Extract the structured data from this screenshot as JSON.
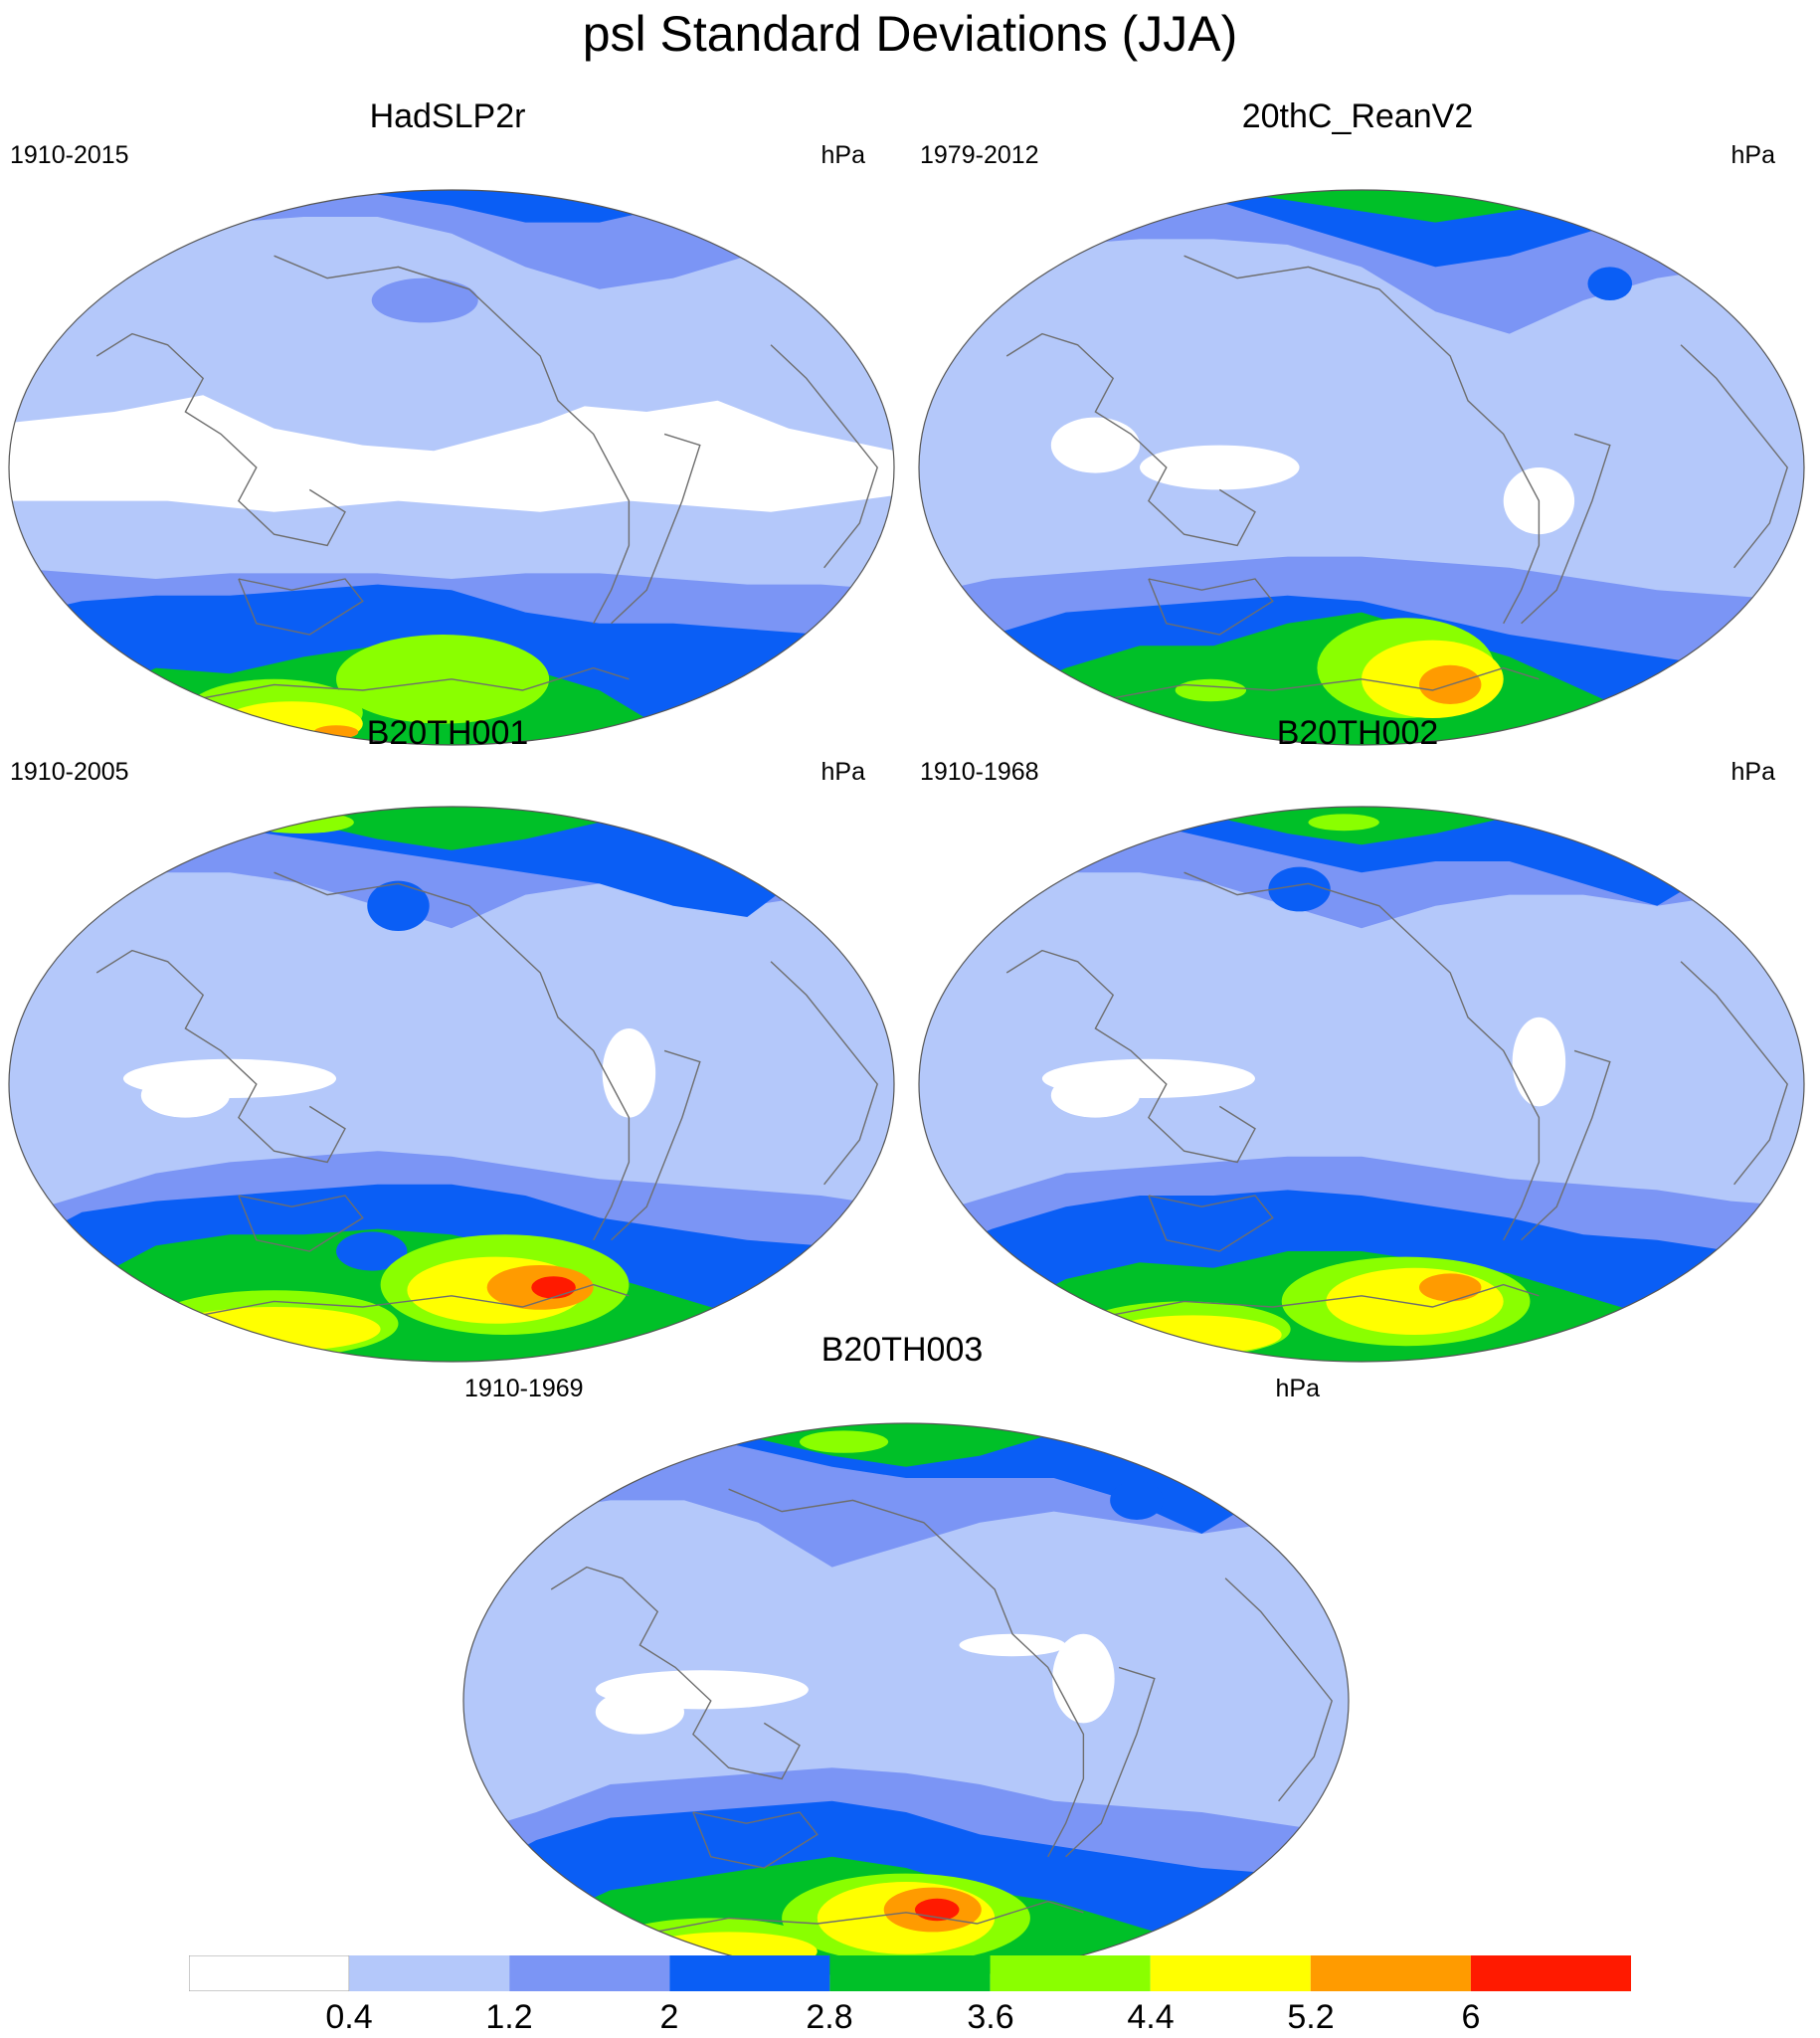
{
  "title": "psl Standard Deviations (JJA)",
  "colors": {
    "levels": [
      "#ffffff",
      "#b4c8fa",
      "#7b95f5",
      "#0a5ef5",
      "#00c028",
      "#8aff00",
      "#ffff00",
      "#ff9b00",
      "#ff1a00"
    ],
    "coast": "#6e6e6e",
    "frame": "#555555"
  },
  "panels": [
    {
      "title": "HadSLP2r",
      "years": "1910-2015",
      "units": "hPa"
    },
    {
      "title": "20thC_ReanV2",
      "years": "1979-2012",
      "units": "hPa"
    },
    {
      "title": "B20TH001",
      "years": "1910-2005",
      "units": "hPa"
    },
    {
      "title": "B20TH002",
      "years": "1910-1968",
      "units": "hPa"
    },
    {
      "title": "B20TH003",
      "years": "1910-1969",
      "units": "hPa"
    }
  ],
  "colorbar": {
    "labels": [
      "0.4",
      "1.2",
      "2",
      "2.8",
      "3.6",
      "4.4",
      "5.2",
      "6"
    ],
    "levels": [
      0.4,
      1.2,
      2,
      2.8,
      3.6,
      4.4,
      5.2,
      6
    ]
  }
}
